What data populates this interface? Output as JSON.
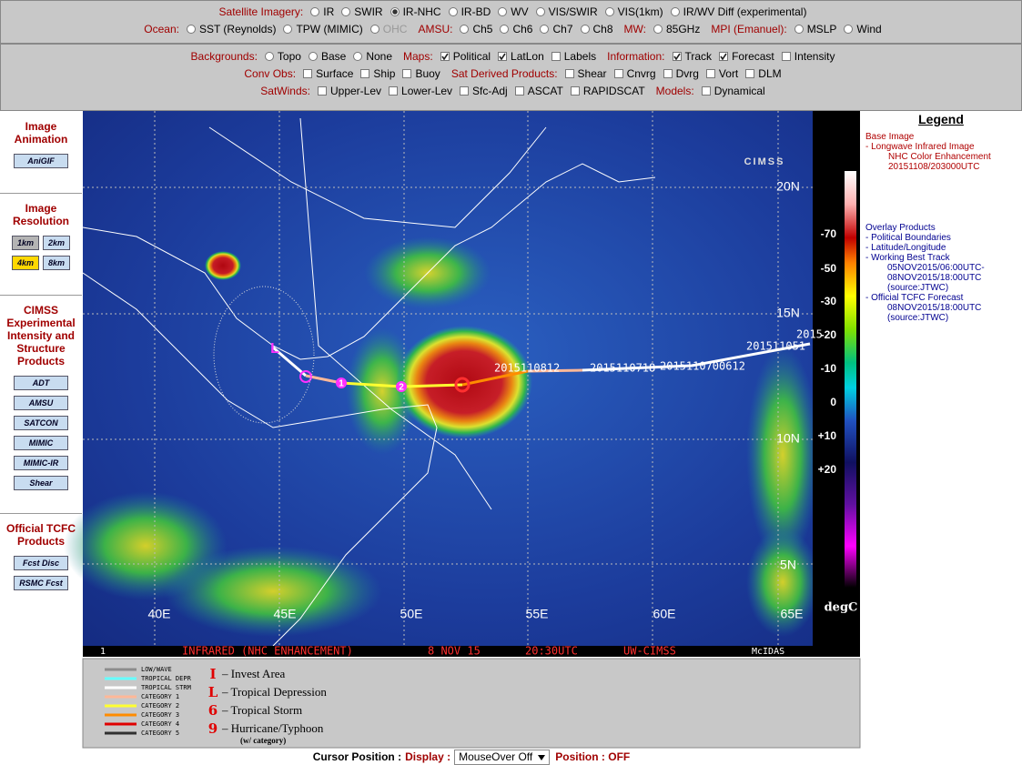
{
  "imagery_bar": {
    "rows": [
      [
        {
          "label": "Satellite Imagery:",
          "kind": "radio",
          "options": [
            {
              "text": "IR",
              "on": false
            },
            {
              "text": "SWIR",
              "on": false
            },
            {
              "text": "IR-NHC",
              "on": true
            },
            {
              "text": "IR-BD",
              "on": false
            },
            {
              "text": "WV",
              "on": false
            },
            {
              "text": "VIS/SWIR",
              "on": false
            },
            {
              "text": "VIS(1km)",
              "on": false
            },
            {
              "text": "IR/WV Diff (experimental)",
              "on": false
            }
          ]
        }
      ],
      [
        {
          "label": "Ocean:",
          "kind": "radio",
          "options": [
            {
              "text": "SST (Reynolds)",
              "on": false
            },
            {
              "text": "TPW (MIMIC)",
              "on": false
            },
            {
              "text": "OHC",
              "on": false,
              "disabled": true
            }
          ]
        },
        {
          "label": "AMSU:",
          "kind": "radio",
          "options": [
            {
              "text": "Ch5",
              "on": false
            },
            {
              "text": "Ch6",
              "on": false
            },
            {
              "text": "Ch7",
              "on": false
            },
            {
              "text": "Ch8",
              "on": false
            }
          ]
        },
        {
          "label": "MW:",
          "kind": "radio",
          "options": [
            {
              "text": "85GHz",
              "on": false
            }
          ]
        },
        {
          "label": "MPI (Emanuel):",
          "kind": "radio",
          "options": [
            {
              "text": "MSLP",
              "on": false
            },
            {
              "text": "Wind",
              "on": false
            }
          ]
        }
      ]
    ]
  },
  "overlay_bar": {
    "rows": [
      [
        {
          "label": "Backgrounds:",
          "kind": "radio",
          "options": [
            {
              "text": "Topo",
              "on": false
            },
            {
              "text": "Base",
              "on": false
            },
            {
              "text": "None",
              "on": false
            }
          ]
        },
        {
          "label": "Maps:",
          "kind": "check",
          "options": [
            {
              "text": "Political",
              "on": true
            },
            {
              "text": "LatLon",
              "on": true
            },
            {
              "text": "Labels",
              "on": false
            }
          ]
        },
        {
          "label": "Information:",
          "kind": "check",
          "options": [
            {
              "text": "Track",
              "on": true
            },
            {
              "text": "Forecast",
              "on": true
            },
            {
              "text": "Intensity",
              "on": false
            }
          ]
        }
      ],
      [
        {
          "label": "Conv Obs:",
          "kind": "check",
          "options": [
            {
              "text": "Surface",
              "on": false
            },
            {
              "text": "Ship",
              "on": false
            },
            {
              "text": "Buoy",
              "on": false
            }
          ]
        },
        {
          "label": "Sat Derived Products:",
          "kind": "check",
          "options": [
            {
              "text": "Shear",
              "on": false
            },
            {
              "text": "Cnvrg",
              "on": false
            },
            {
              "text": "Dvrg",
              "on": false
            },
            {
              "text": "Vort",
              "on": false
            },
            {
              "text": "DLM",
              "on": false
            }
          ]
        }
      ],
      [
        {
          "label": "SatWinds:",
          "kind": "check",
          "options": [
            {
              "text": "Upper-Lev",
              "on": false
            },
            {
              "text": "Lower-Lev",
              "on": false
            },
            {
              "text": "Sfc-Adj",
              "on": false
            },
            {
              "text": "ASCAT",
              "on": false
            },
            {
              "text": "RAPIDSCAT",
              "on": false
            }
          ]
        },
        {
          "label": "Models:",
          "kind": "check",
          "options": [
            {
              "text": "Dynamical",
              "on": false
            }
          ]
        }
      ]
    ]
  },
  "sidebar": [
    {
      "title": "Image Animation",
      "buttons": [
        {
          "text": "AniGIF",
          "color": "#c8dcf0"
        }
      ],
      "cols": 1
    },
    {
      "title": "Image Resolution",
      "buttons": [
        {
          "text": "1km",
          "color": "#b4b4b4"
        },
        {
          "text": "2km",
          "color": "#c8dcf0"
        },
        {
          "text": "4km",
          "color": "#ffd800"
        },
        {
          "text": "8km",
          "color": "#c8dcf0"
        }
      ],
      "cols": 2
    },
    {
      "title": "CIMSS Experimental Intensity and Structure Products",
      "buttons": [
        {
          "text": "ADT",
          "color": "#c8dcf0"
        },
        {
          "text": "AMSU",
          "color": "#c8dcf0"
        },
        {
          "text": "SATCON",
          "color": "#c8dcf0"
        },
        {
          "text": "MIMIC",
          "color": "#c8dcf0"
        },
        {
          "text": "MIMIC-IR",
          "color": "#c8dcf0"
        },
        {
          "text": "Shear",
          "color": "#c8dcf0"
        }
      ],
      "cols": 1
    },
    {
      "title": "Official TCFC Products",
      "buttons": [
        {
          "text": "Fcst Disc",
          "color": "#c8dcf0"
        },
        {
          "text": "RSMC Fcst",
          "color": "#c8dcf0"
        }
      ],
      "cols": 1
    }
  ],
  "map": {
    "lat_labels": [
      "20N",
      "15N",
      "10N",
      "5N"
    ],
    "lon_labels": [
      "40E",
      "45E",
      "50E",
      "55E",
      "60E",
      "65E"
    ],
    "track_labels": [
      "2015110812",
      "2015110718",
      "2015110700612",
      "201511051",
      "2015"
    ],
    "track_symbols": [
      "L",
      "1",
      "2"
    ],
    "logo": "CIMSS",
    "footer": [
      "1",
      "INFRARED (NHC ENHANCEMENT)",
      "8 NOV 15",
      "20:30UTC",
      "UW-CIMSS",
      "McIDAS"
    ]
  },
  "colorbar": {
    "labels": [
      "-70",
      "-50",
      "-30",
      "-20",
      "-10",
      "0",
      "+10",
      "+20"
    ],
    "unit": "degC"
  },
  "legend": {
    "title": "Legend",
    "sections": [
      {
        "heading": "Base Image",
        "items": [
          {
            "text": "-   Longwave Infrared Image",
            "lines": [
              "NHC Color Enhancement",
              "20151108/203000UTC"
            ]
          }
        ]
      },
      {
        "heading": "Overlay Products",
        "items": [
          {
            "text": "-  Political Boundaries",
            "lines": []
          },
          {
            "text": "-  Latitude/Longitude",
            "lines": []
          },
          {
            "text": "-  Working Best Track",
            "lines": [
              "05NOV2015/06:00UTC-",
              "08NOV2015/18:00UTC",
              "(source:JTWC)"
            ]
          },
          {
            "text": "-  Official TCFC Forecast",
            "lines": [
              "08NOV2015/18:00UTC",
              "(source:JTWC)"
            ]
          }
        ]
      }
    ]
  },
  "track_legend": {
    "lines": [
      {
        "name": "LOW/WAVE",
        "color": "#8c8c8c"
      },
      {
        "name": "TROPICAL DEPR",
        "color": "#66ffff"
      },
      {
        "name": "TROPICAL STRM",
        "color": "#ffffff"
      },
      {
        "name": "CATEGORY 1",
        "color": "#ffb898"
      },
      {
        "name": "CATEGORY 2",
        "color": "#ffff30"
      },
      {
        "name": "CATEGORY 3",
        "color": "#ff8c00"
      },
      {
        "name": "CATEGORY 4",
        "color": "#e00000"
      },
      {
        "name": "CATEGORY 5",
        "color": "#303030"
      }
    ],
    "symbols": [
      {
        "glyph": "I",
        "text": "– Invest Area"
      },
      {
        "glyph": "L",
        "text": "– Tropical Depression"
      },
      {
        "glyph": "6",
        "text": "– Tropical Storm"
      },
      {
        "glyph": "9",
        "text": "– Hurricane/Typhoon"
      }
    ],
    "note": "(w/ category)"
  },
  "status_bar": {
    "cursor": "Cursor Position :",
    "display": "Display :",
    "select": "MouseOver Off",
    "position": "Position : OFF"
  }
}
